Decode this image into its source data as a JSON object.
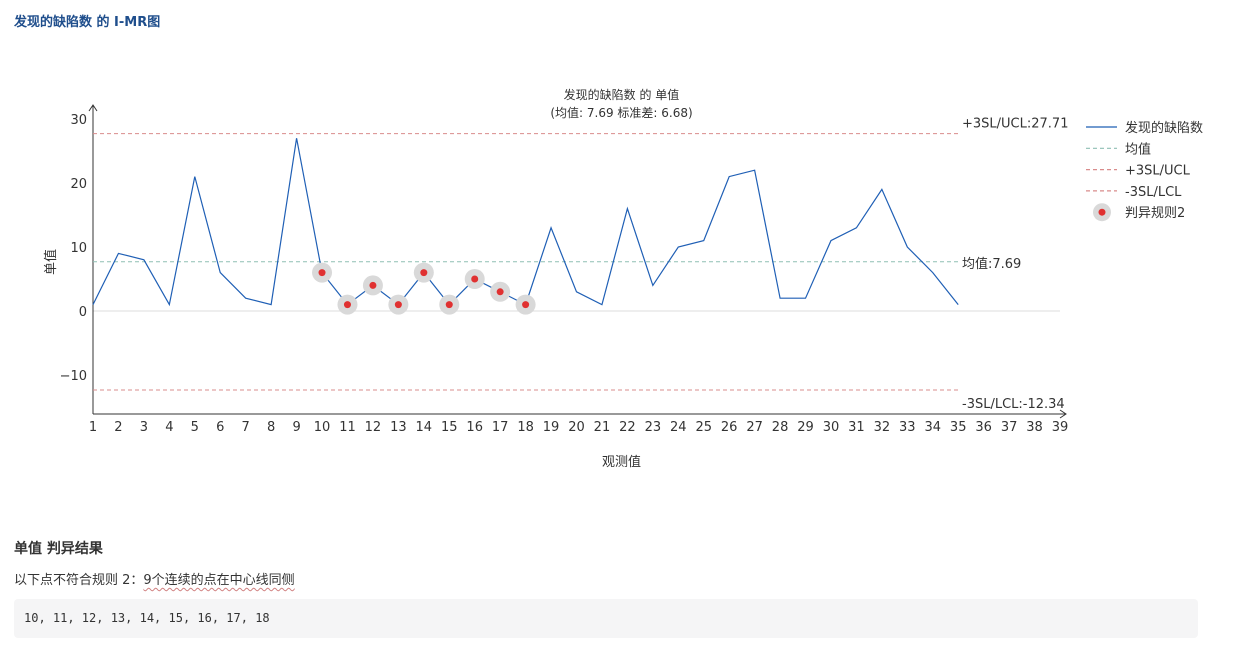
{
  "page": {
    "title": "发现的缺陷数 的 I-MR图"
  },
  "chart_data": {
    "type": "line",
    "title": "发现的缺陷数 的 单值",
    "subtitle": "(均值: 7.69  标准差: 6.68)",
    "xlabel": "观测值",
    "ylabel": "单值",
    "xlim": [
      1,
      39
    ],
    "ylim": [
      -16,
      32
    ],
    "x_ticks": [
      1,
      2,
      3,
      4,
      5,
      6,
      7,
      8,
      9,
      10,
      11,
      12,
      13,
      14,
      15,
      16,
      17,
      18,
      19,
      20,
      21,
      22,
      23,
      24,
      25,
      26,
      27,
      28,
      29,
      30,
      31,
      32,
      33,
      34,
      35,
      36,
      37,
      38,
      39
    ],
    "y_ticks": [
      30,
      20,
      10,
      0,
      -10
    ],
    "y_tick_labels": [
      "30",
      "20",
      "10",
      "0",
      "−10"
    ],
    "series": [
      {
        "name": "发现的缺陷数",
        "color": "#1f5fb5",
        "x": [
          1,
          2,
          3,
          4,
          5,
          6,
          7,
          8,
          9,
          10,
          11,
          12,
          13,
          14,
          15,
          16,
          17,
          18,
          19,
          20,
          21,
          22,
          23,
          24,
          25,
          26,
          27,
          28,
          29,
          30,
          31,
          32,
          33,
          34,
          35
        ],
        "values": [
          1,
          9,
          8,
          1,
          21,
          6,
          2,
          1,
          27,
          6,
          1,
          4,
          1,
          6,
          1,
          5,
          3,
          1,
          13,
          3,
          1,
          16,
          4,
          10,
          11,
          21,
          22,
          2,
          2,
          11,
          13,
          19,
          10,
          6,
          1
        ]
      }
    ],
    "reference_lines": [
      {
        "name": "均值",
        "value": 7.69,
        "label": "均值:7.69",
        "color": "#8fbfb4"
      },
      {
        "name": "+3SL/UCL",
        "value": 27.71,
        "label": "+3SL/UCL:27.71",
        "color": "#d98c8c"
      },
      {
        "name": "-3SL/LCL",
        "value": -12.34,
        "label": "-3SL/LCL:-12.34",
        "color": "#d98c8c"
      }
    ],
    "highlight": {
      "name": "判异规则2",
      "x": [
        10,
        11,
        12,
        13,
        14,
        15,
        16,
        17,
        18
      ],
      "dot_color": "#e03131",
      "halo_color": "#d9d9d9"
    },
    "legend": {
      "placement": "right",
      "items": [
        "发现的缺陷数",
        "均值",
        "+3SL/UCL",
        "-3SL/LCL",
        "判异规则2"
      ]
    },
    "grid": false
  },
  "result": {
    "title": "单值 判异结果",
    "prefix": "以下点不符合规则 2：",
    "rule_text": "9个连续的点在中心线同侧",
    "points": "10, 11, 12, 13, 14, 15, 16, 17, 18"
  }
}
